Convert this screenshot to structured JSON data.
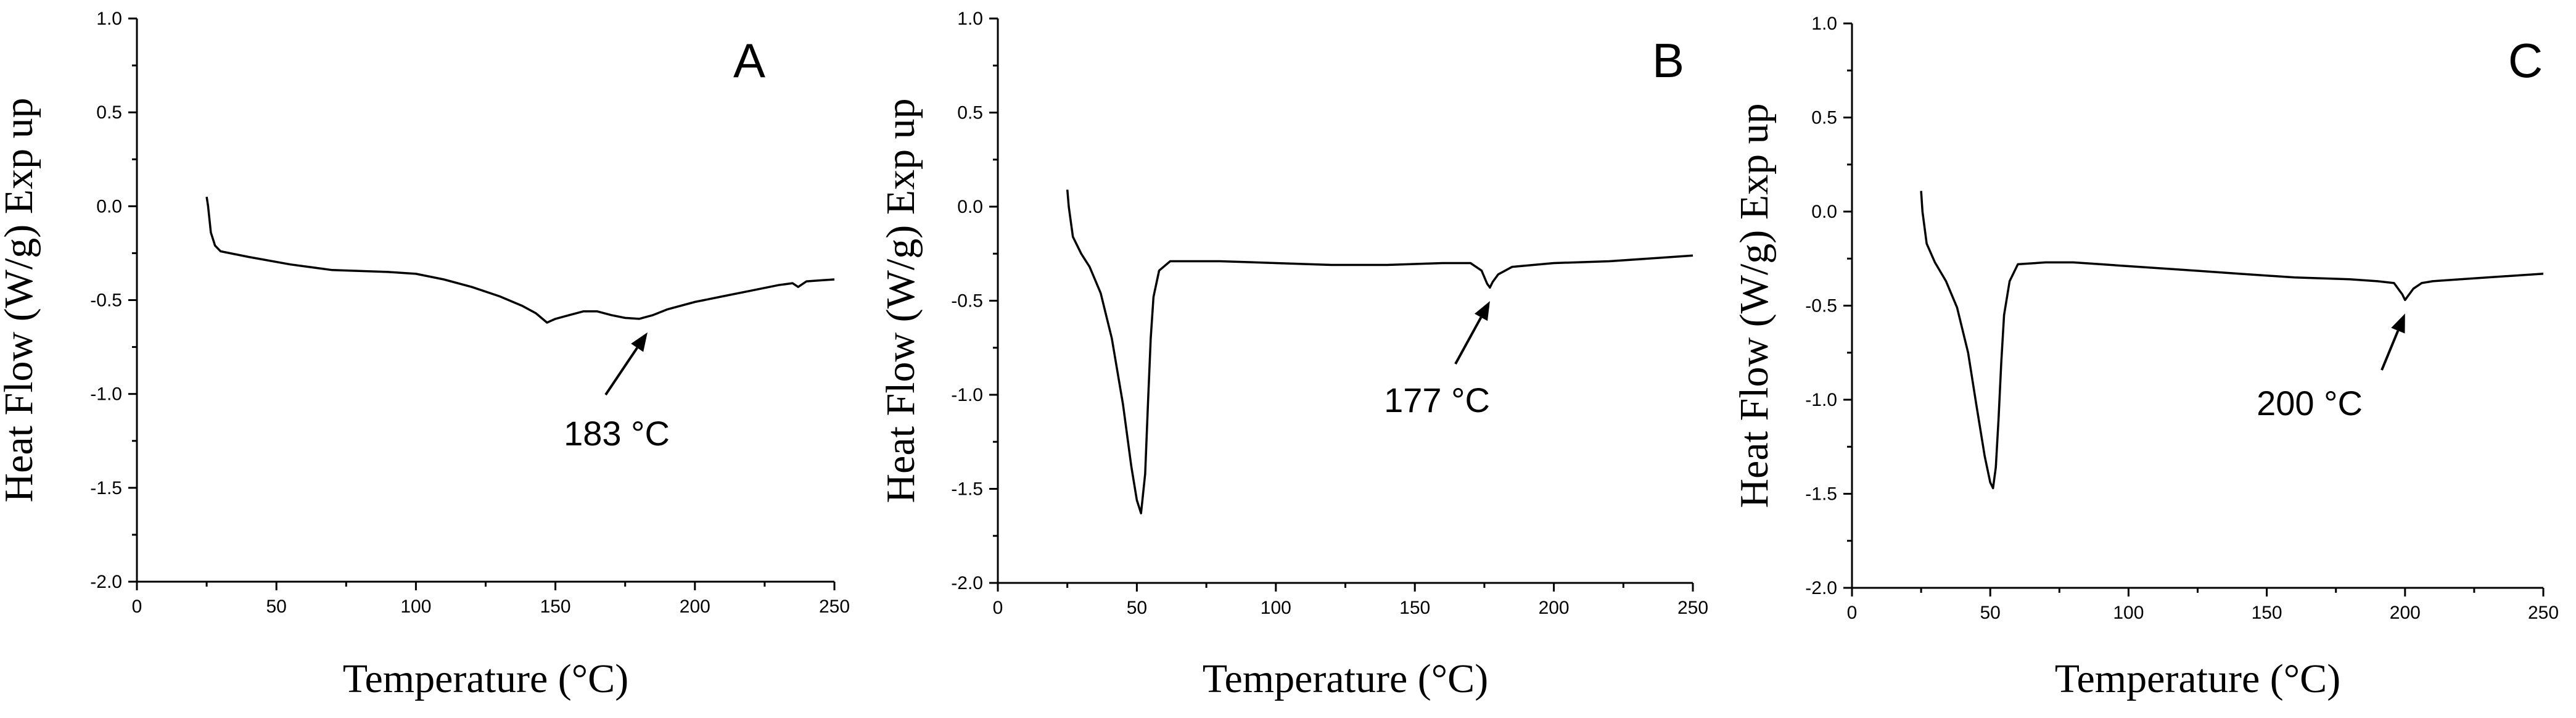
{
  "figure": {
    "background": "#ffffff",
    "line_color": "#000000"
  },
  "chart_data": [
    {
      "type": "line",
      "panel": "A",
      "xlabel": "Temperature (°C)",
      "ylabel": "Heat Flow (W/g) Exp up",
      "xlim": [
        0,
        250
      ],
      "ylim": [
        -2.0,
        1.0
      ],
      "x_ticks": [
        "0",
        "50",
        "100",
        "150",
        "200",
        "250"
      ],
      "y_ticks": [
        "1.0",
        "0.5",
        "0.0",
        "-0.5",
        "-1.0",
        "-1.5",
        "-2.0"
      ],
      "grid": false,
      "series": [
        {
          "x": [
            25,
            25.5,
            26.5,
            28,
            30,
            40,
            55,
            70,
            90,
            100,
            110,
            120,
            130,
            138,
            143,
            147,
            150,
            155,
            160,
            165,
            170,
            175,
            180,
            185,
            190,
            200,
            210,
            220,
            230,
            235,
            237,
            240,
            245,
            250
          ],
          "y": [
            0.05,
            0.0,
            -0.14,
            -0.21,
            -0.24,
            -0.27,
            -0.31,
            -0.34,
            -0.35,
            -0.36,
            -0.39,
            -0.43,
            -0.48,
            -0.53,
            -0.57,
            -0.62,
            -0.6,
            -0.58,
            -0.56,
            -0.56,
            -0.58,
            -0.595,
            -0.6,
            -0.58,
            -0.55,
            -0.51,
            -0.48,
            -0.45,
            -0.42,
            -0.41,
            -0.43,
            -0.4,
            -0.395,
            -0.39
          ]
        }
      ],
      "annotations": [
        {
          "text": "183 °C",
          "x": 183,
          "y": -0.6
        }
      ]
    },
    {
      "type": "line",
      "panel": "B",
      "xlabel": "Temperature (°C)",
      "ylabel": "Heat Flow (W/g) Exp up",
      "xlim": [
        0,
        250
      ],
      "ylim": [
        -2.0,
        1.0
      ],
      "x_ticks": [
        "0",
        "50",
        "100",
        "150",
        "200",
        "250"
      ],
      "y_ticks": [
        "1.0",
        "0.5",
        "0.0",
        "-0.5",
        "-1.0",
        "-1.5",
        "-2.0"
      ],
      "grid": false,
      "series": [
        {
          "x": [
            25,
            25.5,
            27,
            30,
            33,
            37,
            41,
            45,
            48,
            50,
            51.5,
            53,
            54,
            55,
            56,
            58,
            62,
            80,
            100,
            120,
            140,
            160,
            170,
            174,
            176,
            177,
            178,
            180,
            185,
            200,
            220,
            240,
            250
          ],
          "y": [
            0.09,
            0.0,
            -0.16,
            -0.25,
            -0.32,
            -0.46,
            -0.7,
            -1.05,
            -1.38,
            -1.56,
            -1.63,
            -1.42,
            -1.05,
            -0.7,
            -0.48,
            -0.34,
            -0.29,
            -0.29,
            -0.3,
            -0.31,
            -0.31,
            -0.3,
            -0.3,
            -0.34,
            -0.41,
            -0.43,
            -0.4,
            -0.36,
            -0.32,
            -0.3,
            -0.29,
            -0.27,
            -0.26
          ]
        }
      ],
      "annotations": [
        {
          "text": "177 °C",
          "x": 177,
          "y": -0.43
        }
      ]
    },
    {
      "type": "line",
      "panel": "C",
      "xlabel": "Temperature (°C)",
      "ylabel": "Heat Flow (W/g) Exp up",
      "xlim": [
        0,
        250
      ],
      "ylim": [
        -2.0,
        1.0
      ],
      "x_ticks": [
        "0",
        "50",
        "100",
        "150",
        "200",
        "250"
      ],
      "y_ticks": [
        "1.0",
        "0.5",
        "0.0",
        "-0.5",
        "-1.0",
        "-1.5",
        "-2.0"
      ],
      "grid": false,
      "series": [
        {
          "x": [
            25,
            25.5,
            27,
            30,
            34,
            38,
            42,
            45,
            48,
            50,
            51,
            52,
            53,
            54,
            55,
            57,
            60,
            70,
            80,
            90,
            100,
            120,
            140,
            160,
            180,
            190,
            196,
            199,
            200,
            201,
            203,
            206,
            210,
            220,
            240,
            250
          ],
          "y": [
            0.11,
            0.0,
            -0.17,
            -0.27,
            -0.37,
            -0.51,
            -0.75,
            -1.03,
            -1.3,
            -1.44,
            -1.47,
            -1.36,
            -1.1,
            -0.8,
            -0.55,
            -0.37,
            -0.28,
            -0.27,
            -0.27,
            -0.28,
            -0.29,
            -0.31,
            -0.33,
            -0.35,
            -0.36,
            -0.37,
            -0.38,
            -0.44,
            -0.47,
            -0.45,
            -0.41,
            -0.38,
            -0.37,
            -0.36,
            -0.34,
            -0.33
          ]
        }
      ],
      "annotations": [
        {
          "text": "200 °C",
          "x": 200,
          "y": -0.47
        }
      ]
    }
  ]
}
